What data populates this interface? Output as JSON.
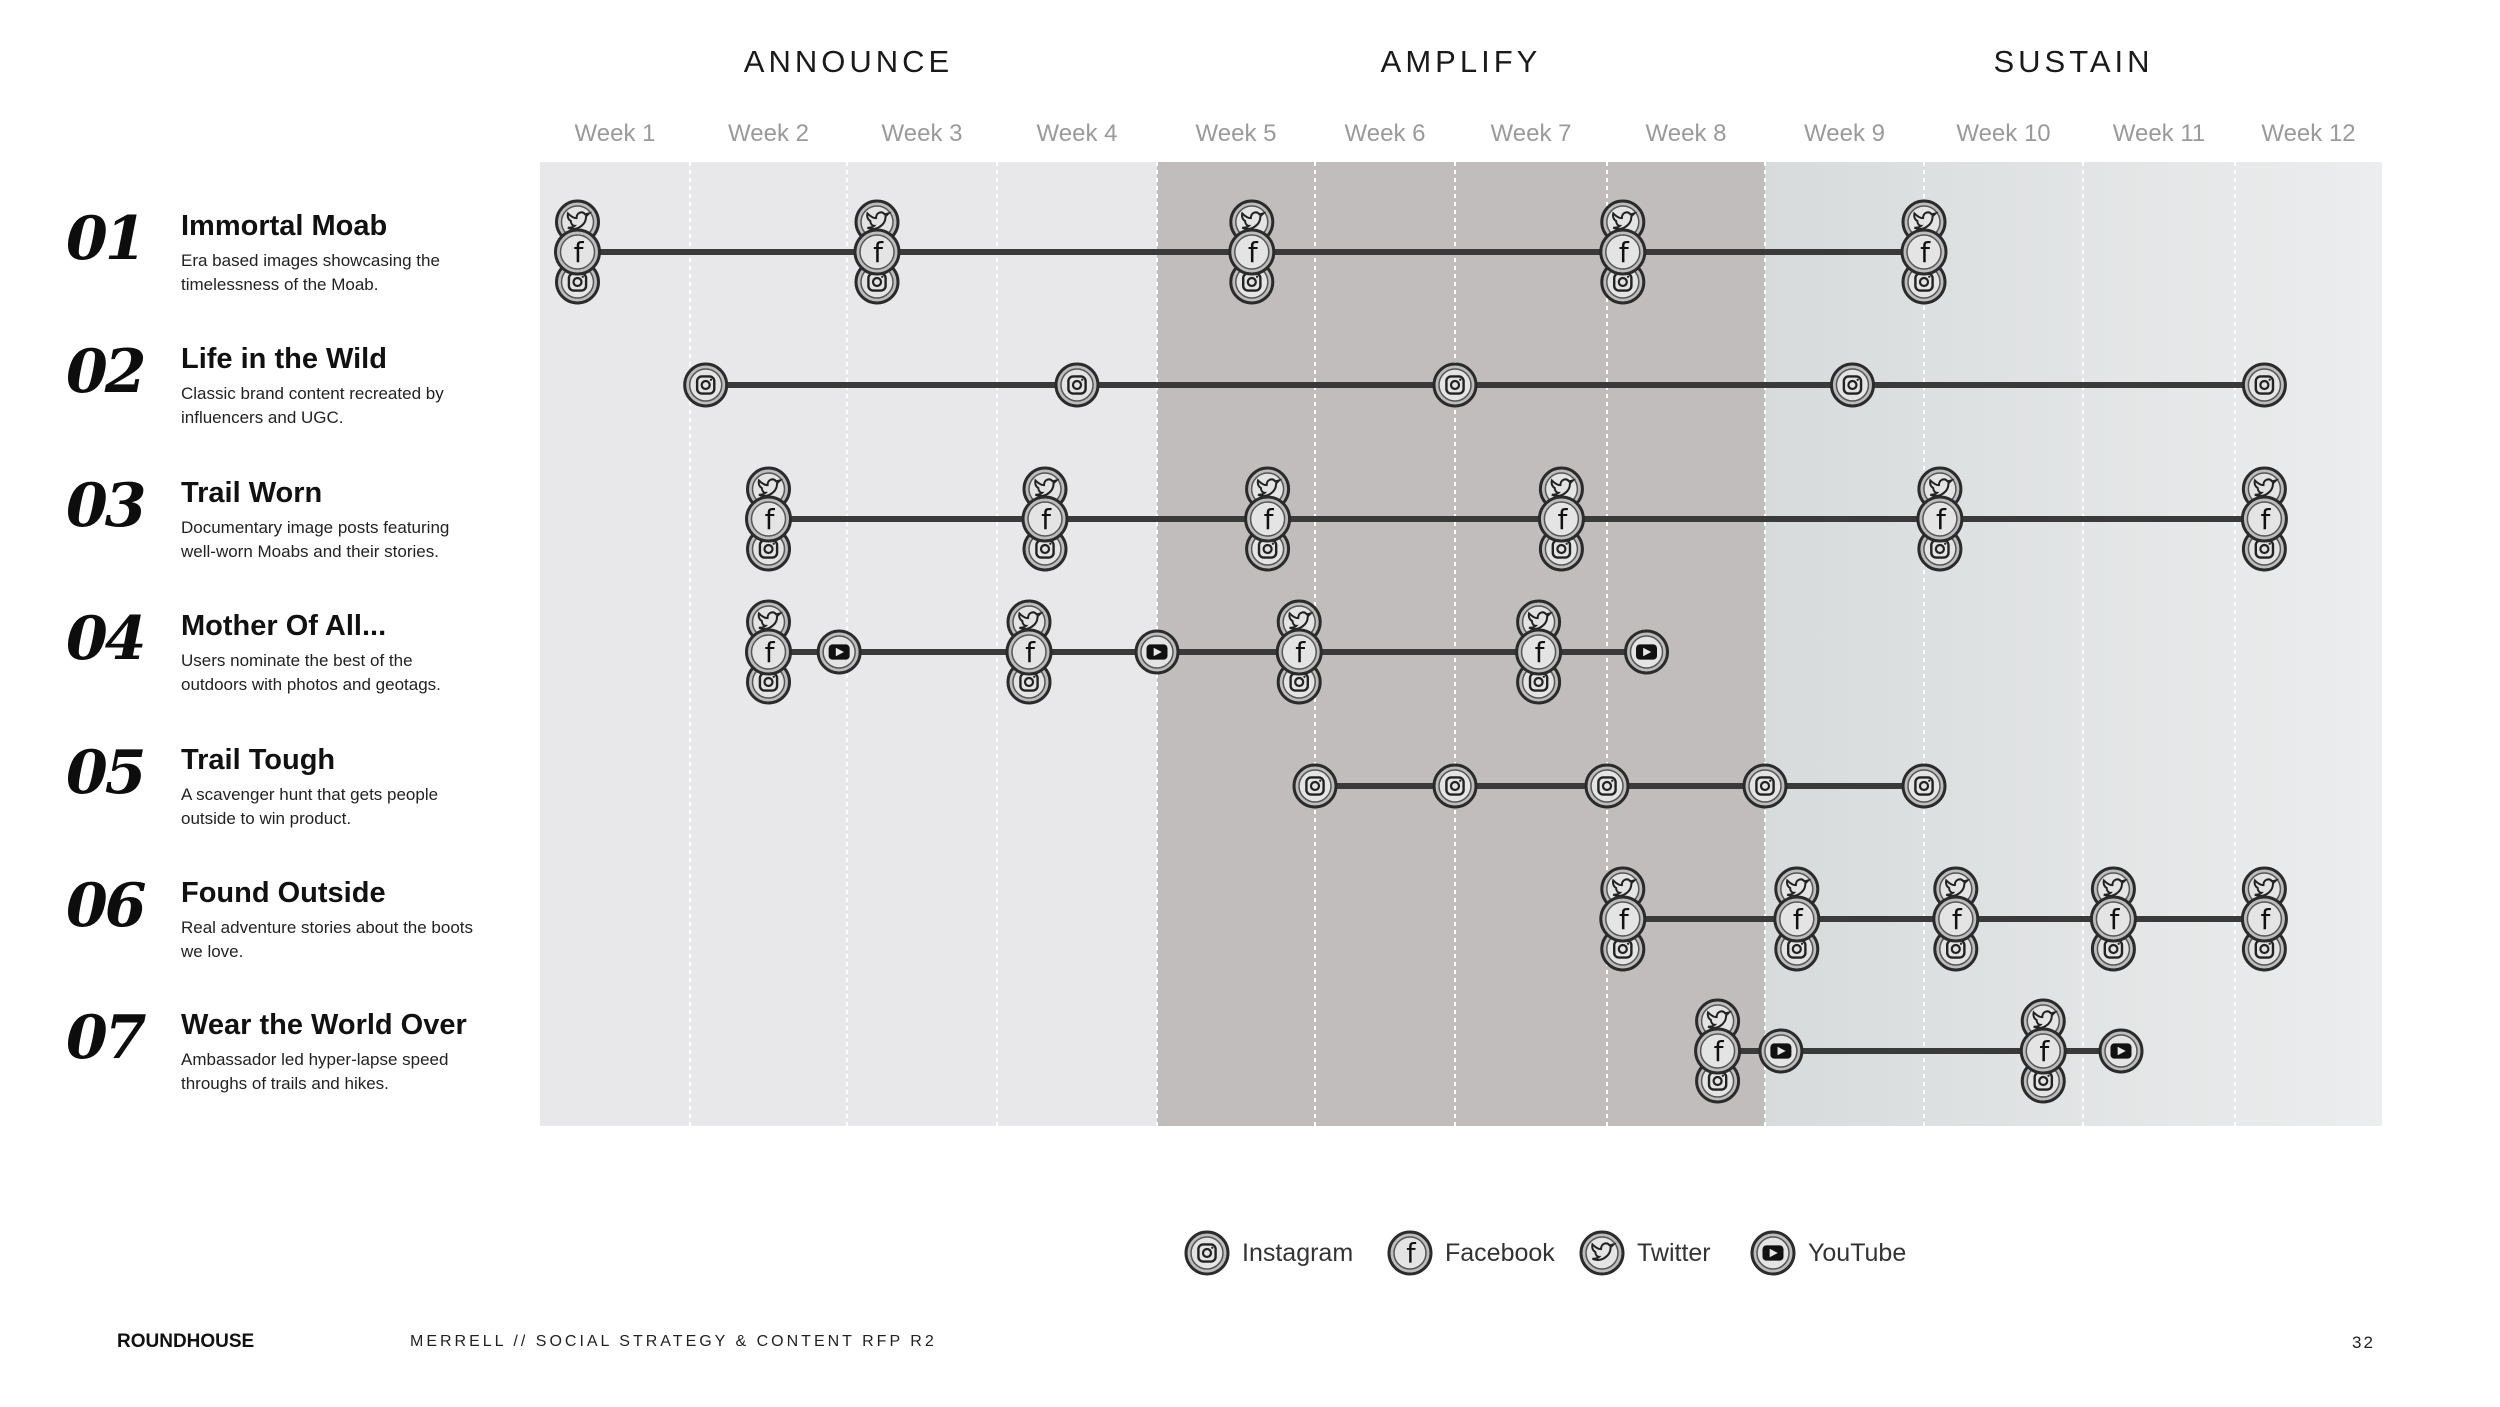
{
  "phases": [
    {
      "label": "ANNOUNCE",
      "weeks": [
        1,
        4
      ]
    },
    {
      "label": "AMPLIFY",
      "weeks": [
        5,
        8
      ]
    },
    {
      "label": "SUSTAIN",
      "weeks": [
        9,
        12
      ]
    }
  ],
  "weeks": [
    "Week 1",
    "Week 2",
    "Week 3",
    "Week 4",
    "Week 5",
    "Week 6",
    "Week 7",
    "Week 8",
    "Week 9",
    "Week 10",
    "Week 11",
    "Week 12"
  ],
  "phase_colors": [
    "#e8e8ea",
    "#c1bdbc",
    "#e1e3e3"
  ],
  "rows": [
    {
      "num": "01",
      "title": "Immortal Moab",
      "desc": "Era based images showcasing the timelessness of the Moab.",
      "line_from": 1.25,
      "line_to": 10.0,
      "posts": [
        {
          "week": 1.25,
          "channels": [
            "twitter",
            "facebook",
            "instagram"
          ]
        },
        {
          "week": 3.2,
          "channels": [
            "twitter",
            "facebook",
            "instagram"
          ]
        },
        {
          "week": 5.6,
          "channels": [
            "twitter",
            "facebook",
            "instagram"
          ]
        },
        {
          "week": 8.1,
          "channels": [
            "twitter",
            "facebook",
            "instagram"
          ]
        },
        {
          "week": 10.0,
          "channels": [
            "twitter",
            "facebook",
            "instagram"
          ]
        }
      ]
    },
    {
      "num": "02",
      "title": "Life in the Wild",
      "desc": "Classic brand content recreated by influencers and UGC.",
      "line_from": 2.1,
      "line_to": 12.2,
      "posts": [
        {
          "week": 2.1,
          "channels": [
            "instagram"
          ]
        },
        {
          "week": 4.5,
          "channels": [
            "instagram"
          ]
        },
        {
          "week": 7.0,
          "channels": [
            "instagram"
          ]
        },
        {
          "week": 9.55,
          "channels": [
            "instagram"
          ]
        },
        {
          "week": 12.2,
          "channels": [
            "instagram"
          ]
        }
      ]
    },
    {
      "num": "03",
      "title": "Trail Worn",
      "desc": "Documentary image posts featuring well-worn Moabs and their stories.",
      "line_from": 2.5,
      "line_to": 12.2,
      "posts": [
        {
          "week": 2.5,
          "channels": [
            "twitter",
            "facebook",
            "instagram"
          ]
        },
        {
          "week": 4.3,
          "channels": [
            "twitter",
            "facebook",
            "instagram"
          ]
        },
        {
          "week": 5.7,
          "channels": [
            "twitter",
            "facebook",
            "instagram"
          ]
        },
        {
          "week": 7.7,
          "channels": [
            "twitter",
            "facebook",
            "instagram"
          ]
        },
        {
          "week": 10.1,
          "channels": [
            "twitter",
            "facebook",
            "instagram"
          ]
        },
        {
          "week": 12.2,
          "channels": [
            "twitter",
            "facebook",
            "instagram"
          ]
        }
      ]
    },
    {
      "num": "04",
      "title": "Mother Of All...",
      "desc": "Users nominate the best of the outdoors with photos and geotags.",
      "line_from": 2.5,
      "line_to": 8.25,
      "posts": [
        {
          "week": 2.5,
          "channels": [
            "twitter",
            "facebook",
            "instagram"
          ]
        },
        {
          "week": 2.95,
          "channels": [
            "youtube"
          ]
        },
        {
          "week": 4.2,
          "channels": [
            "twitter",
            "facebook",
            "instagram"
          ]
        },
        {
          "week": 5.0,
          "channels": [
            "youtube"
          ]
        },
        {
          "week": 5.9,
          "channels": [
            "twitter",
            "facebook",
            "instagram"
          ]
        },
        {
          "week": 7.55,
          "channels": [
            "twitter",
            "facebook",
            "instagram"
          ]
        },
        {
          "week": 8.25,
          "channels": [
            "youtube"
          ]
        }
      ]
    },
    {
      "num": "05",
      "title": "Trail Tough",
      "desc": "A scavenger hunt that gets people outside to win product.",
      "line_from": 6.0,
      "line_to": 10.0,
      "posts": [
        {
          "week": 6.0,
          "channels": [
            "instagram"
          ]
        },
        {
          "week": 7.0,
          "channels": [
            "instagram"
          ]
        },
        {
          "week": 8.0,
          "channels": [
            "instagram"
          ]
        },
        {
          "week": 9.0,
          "channels": [
            "instagram"
          ]
        },
        {
          "week": 10.0,
          "channels": [
            "instagram"
          ]
        }
      ]
    },
    {
      "num": "06",
      "title": "Found Outside",
      "desc": "Real adventure stories about the boots we love.",
      "line_from": 8.1,
      "line_to": 12.2,
      "posts": [
        {
          "week": 8.1,
          "channels": [
            "twitter",
            "facebook",
            "instagram"
          ]
        },
        {
          "week": 9.2,
          "channels": [
            "twitter",
            "facebook",
            "instagram"
          ]
        },
        {
          "week": 10.2,
          "channels": [
            "twitter",
            "facebook",
            "instagram"
          ]
        },
        {
          "week": 11.2,
          "channels": [
            "twitter",
            "facebook",
            "instagram"
          ]
        },
        {
          "week": 12.2,
          "channels": [
            "twitter",
            "facebook",
            "instagram"
          ]
        }
      ]
    },
    {
      "num": "07",
      "title": "Wear the World Over",
      "desc": "Ambassador led hyper-lapse speed throughs of trails and hikes.",
      "line_from": 8.7,
      "line_to": 11.25,
      "posts": [
        {
          "week": 8.7,
          "channels": [
            "twitter",
            "facebook",
            "instagram"
          ]
        },
        {
          "week": 9.1,
          "channels": [
            "youtube"
          ]
        },
        {
          "week": 10.75,
          "channels": [
            "twitter",
            "facebook",
            "instagram"
          ]
        },
        {
          "week": 11.25,
          "channels": [
            "youtube"
          ]
        }
      ]
    }
  ],
  "legend": [
    {
      "icon": "instagram",
      "label": "Instagram"
    },
    {
      "icon": "facebook",
      "label": "Facebook"
    },
    {
      "icon": "twitter",
      "label": "Twitter"
    },
    {
      "icon": "youtube",
      "label": "YouTube"
    }
  ],
  "footer": {
    "brand": "ROUNDHOUSE",
    "doc": "MERRELL  //  SOCIAL STRATEGY & CONTENT RFP R2",
    "page": "32"
  }
}
